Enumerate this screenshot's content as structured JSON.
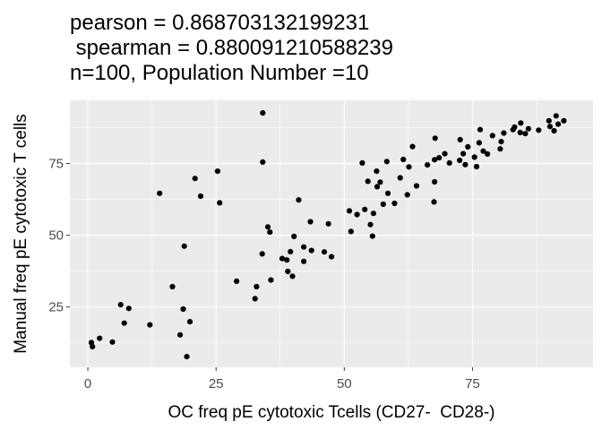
{
  "chart_data": {
    "type": "scatter",
    "title": [
      "pearson = 0.868703132199231",
      " spearman = 0.880091210588239",
      "n=100, Population Number =10"
    ],
    "xlabel": "OC freq pE cytotoxic Tcells (CD27-  CD28-)",
    "ylabel": "Manual freq pE cytotoxic T cells",
    "xlim": [
      -3.5,
      98.5
    ],
    "ylim": [
      4,
      97
    ],
    "xticks": [
      0,
      25,
      50,
      75
    ],
    "xtick_labels": [
      "0",
      "25",
      "50",
      "75"
    ],
    "yticks": [
      25,
      50,
      75
    ],
    "ytick_labels": [
      "25",
      "50",
      "75"
    ],
    "grid": true,
    "legend": "none",
    "colors": {
      "panel": "#ebebeb",
      "grid": "#ffffff",
      "point": "#000000",
      "tick_text": "#4d4d4d"
    },
    "points": [
      [
        0.7,
        12.6
      ],
      [
        0.9,
        11.2
      ],
      [
        2.3,
        14.1
      ],
      [
        4.8,
        12.8
      ],
      [
        6.4,
        25.8
      ],
      [
        7.1,
        19.4
      ],
      [
        8.0,
        24.5
      ],
      [
        12.1,
        18.8
      ],
      [
        14.0,
        64.6
      ],
      [
        16.5,
        32.1
      ],
      [
        18.0,
        15.3
      ],
      [
        18.6,
        24.3
      ],
      [
        18.8,
        46.2
      ],
      [
        19.3,
        7.7
      ],
      [
        19.9,
        19.9
      ],
      [
        20.9,
        69.8
      ],
      [
        22.0,
        63.6
      ],
      [
        25.3,
        72.3
      ],
      [
        25.7,
        61.3
      ],
      [
        29.0,
        34.0
      ],
      [
        32.6,
        27.9
      ],
      [
        32.9,
        32.1
      ],
      [
        34.0,
        43.5
      ],
      [
        34.1,
        92.6
      ],
      [
        34.1,
        75.5
      ],
      [
        35.1,
        52.9
      ],
      [
        35.5,
        51.1
      ],
      [
        35.7,
        34.4
      ],
      [
        37.9,
        41.9
      ],
      [
        38.8,
        41.4
      ],
      [
        39.0,
        37.4
      ],
      [
        39.5,
        44.3
      ],
      [
        39.9,
        35.7
      ],
      [
        40.2,
        49.6
      ],
      [
        41.1,
        62.3
      ],
      [
        42.1,
        40.9
      ],
      [
        42.1,
        45.9
      ],
      [
        43.4,
        54.7
      ],
      [
        43.6,
        44.7
      ],
      [
        46.1,
        44.2
      ],
      [
        46.9,
        54.0
      ],
      [
        47.5,
        42.5
      ],
      [
        51.0,
        58.5
      ],
      [
        51.3,
        51.3
      ],
      [
        52.5,
        57.2
      ],
      [
        53.5,
        75.2
      ],
      [
        54.0,
        59.0
      ],
      [
        54.6,
        68.8
      ],
      [
        55.1,
        53.7
      ],
      [
        55.5,
        49.7
      ],
      [
        55.7,
        57.6
      ],
      [
        56.3,
        72.3
      ],
      [
        56.4,
        66.9
      ],
      [
        57.0,
        68.5
      ],
      [
        57.6,
        60.8
      ],
      [
        58.3,
        75.7
      ],
      [
        58.5,
        64.6
      ],
      [
        59.8,
        61.1
      ],
      [
        60.9,
        70.0
      ],
      [
        61.5,
        76.4
      ],
      [
        62.3,
        64.1
      ],
      [
        62.6,
        73.8
      ],
      [
        63.3,
        80.9
      ],
      [
        64.1,
        67.2
      ],
      [
        66.2,
        74.5
      ],
      [
        67.5,
        61.6
      ],
      [
        67.6,
        76.3
      ],
      [
        67.6,
        68.6
      ],
      [
        67.7,
        83.8
      ],
      [
        68.5,
        77.0
      ],
      [
        69.6,
        78.4
      ],
      [
        70.5,
        75.2
      ],
      [
        72.5,
        76.1
      ],
      [
        72.6,
        83.3
      ],
      [
        73.2,
        78.4
      ],
      [
        73.6,
        74.6
      ],
      [
        74.1,
        80.8
      ],
      [
        75.4,
        77.2
      ],
      [
        75.8,
        73.9
      ],
      [
        76.3,
        82.2
      ],
      [
        76.5,
        86.8
      ],
      [
        77.1,
        79.3
      ],
      [
        77.9,
        78.3
      ],
      [
        78.9,
        84.7
      ],
      [
        80.4,
        80.1
      ],
      [
        80.6,
        82.6
      ],
      [
        81.1,
        85.6
      ],
      [
        82.9,
        86.8
      ],
      [
        83.2,
        87.7
      ],
      [
        84.3,
        85.8
      ],
      [
        84.4,
        89.1
      ],
      [
        85.3,
        85.4
      ],
      [
        85.9,
        87.1
      ],
      [
        87.9,
        86.6
      ],
      [
        89.9,
        89.9
      ],
      [
        90.1,
        87.9
      ],
      [
        90.9,
        86.4
      ],
      [
        91.3,
        91.6
      ],
      [
        91.7,
        88.7
      ],
      [
        92.8,
        89.9
      ]
    ]
  }
}
